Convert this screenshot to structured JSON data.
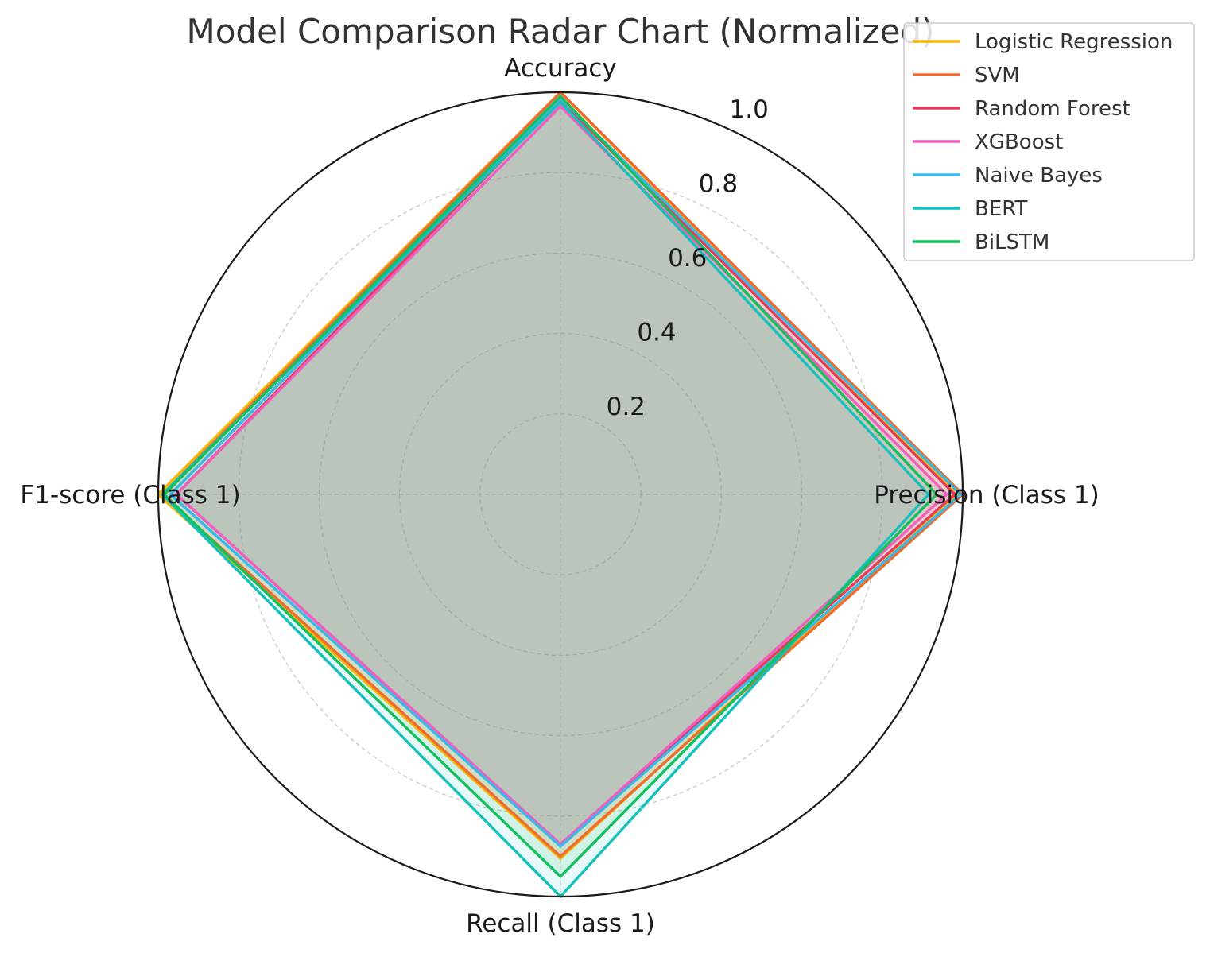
{
  "chart_data": {
    "type": "radar",
    "title": "Model Comparison Radar Chart (Normalized)",
    "axes": [
      "Accuracy",
      "Precision (Class 1)",
      "Recall (Class 1)",
      "F1-score (Class 1)"
    ],
    "r_ticks": [
      "0.2",
      "0.4",
      "0.6",
      "0.8",
      "1.0"
    ],
    "r_tick_values": [
      0.2,
      0.4,
      0.6,
      0.8,
      1.0
    ],
    "rlim": [
      0,
      1.0
    ],
    "grid": true,
    "legend_position": "top-right",
    "series": [
      {
        "name": "Logistic Regression",
        "color": "#f5b50a",
        "values": [
          1.0,
          0.985,
          0.905,
          1.0
        ]
      },
      {
        "name": "SVM",
        "color": "#ef6c2f",
        "values": [
          1.0,
          1.0,
          0.9,
          0.99
        ]
      },
      {
        "name": "Random Forest",
        "color": "#e83a5c",
        "values": [
          0.98,
          0.98,
          0.87,
          0.955
        ]
      },
      {
        "name": "XGBoost",
        "color": "#ee5fc0",
        "values": [
          0.965,
          0.96,
          0.87,
          0.955
        ]
      },
      {
        "name": "Naive Bayes",
        "color": "#3bb8ea",
        "values": [
          0.985,
          0.995,
          0.875,
          0.97
        ]
      },
      {
        "name": "BERT",
        "color": "#14c1bc",
        "values": [
          0.975,
          0.915,
          1.0,
          0.99
        ]
      },
      {
        "name": "BiLSTM",
        "color": "#13bf5f",
        "values": [
          0.99,
          0.935,
          0.95,
          0.985
        ]
      }
    ]
  }
}
